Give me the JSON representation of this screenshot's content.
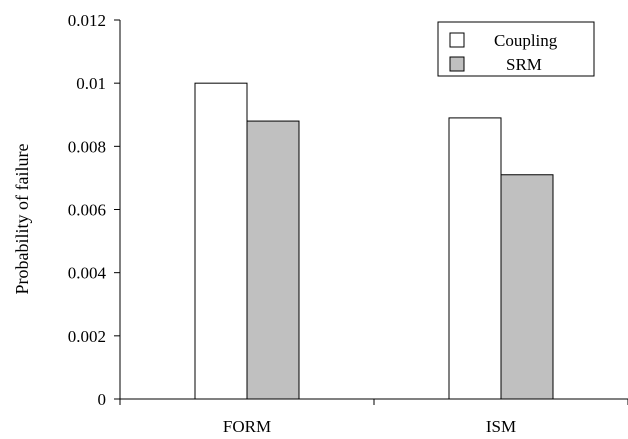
{
  "chart_data": {
    "type": "bar",
    "title": "",
    "xlabel": "",
    "ylabel": "Probability of failure",
    "categories": [
      "FORM",
      "ISM"
    ],
    "series": [
      {
        "name": "Coupling",
        "values": [
          0.01,
          0.0089
        ],
        "color": "#ffffff"
      },
      {
        "name": "SRM",
        "values": [
          0.0088,
          0.0071
        ],
        "color": "#c0c0c0"
      }
    ],
    "ylim": [
      0,
      0.012
    ],
    "yticks": [
      "0",
      "0.002",
      "0.004",
      "0.006",
      "0.008",
      "0.01",
      "0.012"
    ],
    "grid": false,
    "legend_position": "top-right"
  }
}
